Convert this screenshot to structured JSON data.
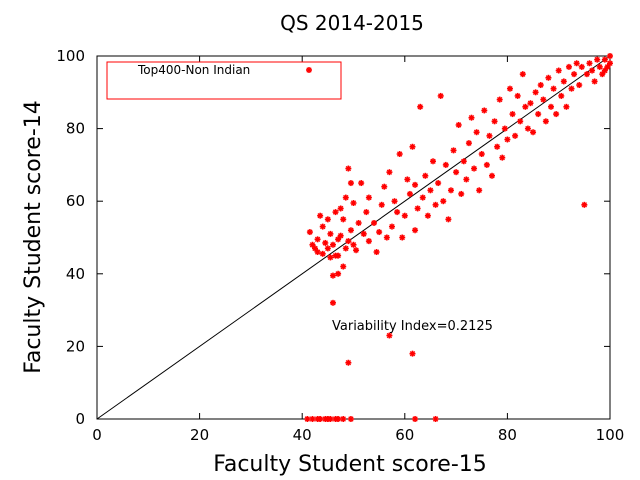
{
  "chart_data": {
    "type": "scatter",
    "title": "QS 2014-2015",
    "xlabel": "Faculty Student score-15",
    "ylabel": "Faculty Student score-14",
    "xlim": [
      0,
      100
    ],
    "ylim": [
      0,
      100
    ],
    "xticks": [
      0,
      20,
      40,
      60,
      80,
      100
    ],
    "yticks": [
      0,
      20,
      40,
      60,
      80,
      100
    ],
    "grid": false,
    "legend_position": "top-left",
    "annotation": "Variability Index=0.2125",
    "reference_line": [
      [
        0,
        0
      ],
      [
        100,
        100
      ]
    ],
    "colors": {
      "points": "#ff0000",
      "line": "#000000",
      "legend_border": "#ff0000"
    },
    "series": [
      {
        "name": "Top400-Non Indian",
        "points": [
          [
            41.5,
            51.5
          ],
          [
            42,
            48
          ],
          [
            42.5,
            47
          ],
          [
            43,
            49.5
          ],
          [
            43,
            46
          ],
          [
            43.5,
            56
          ],
          [
            44,
            45.5
          ],
          [
            44,
            53
          ],
          [
            44.5,
            48.5
          ],
          [
            45,
            47
          ],
          [
            45,
            55
          ],
          [
            45.5,
            51
          ],
          [
            45.5,
            44.5
          ],
          [
            46,
            39.5
          ],
          [
            46,
            48
          ],
          [
            46.5,
            57
          ],
          [
            46.5,
            45
          ],
          [
            47,
            40
          ],
          [
            47,
            49.5
          ],
          [
            47.5,
            50.5
          ],
          [
            47.5,
            58
          ],
          [
            48,
            42
          ],
          [
            48,
            55
          ],
          [
            48.5,
            47
          ],
          [
            48.5,
            61
          ],
          [
            49,
            69
          ],
          [
            49,
            49
          ],
          [
            49.5,
            65
          ],
          [
            49.5,
            52
          ],
          [
            50,
            48
          ],
          [
            50,
            59.5
          ],
          [
            50.5,
            46.5
          ],
          [
            51,
            54
          ],
          [
            51.5,
            65
          ],
          [
            52,
            51
          ],
          [
            52.5,
            57
          ],
          [
            53,
            49
          ],
          [
            53,
            61
          ],
          [
            54,
            54
          ],
          [
            54.5,
            46
          ],
          [
            55,
            51.5
          ],
          [
            55.5,
            59
          ],
          [
            56,
            64
          ],
          [
            56.5,
            50
          ],
          [
            57,
            68
          ],
          [
            57.5,
            53
          ],
          [
            58,
            60
          ],
          [
            58.5,
            57
          ],
          [
            59,
            73
          ],
          [
            59.5,
            50
          ],
          [
            60,
            56
          ],
          [
            60.5,
            66
          ],
          [
            61,
            62
          ],
          [
            61.5,
            75
          ],
          [
            62,
            52
          ],
          [
            62,
            64.5
          ],
          [
            62.5,
            58
          ],
          [
            63,
            86
          ],
          [
            63.5,
            61
          ],
          [
            64,
            67
          ],
          [
            64.5,
            56
          ],
          [
            65,
            63
          ],
          [
            65.5,
            71
          ],
          [
            66,
            59
          ],
          [
            66.5,
            65
          ],
          [
            67,
            89
          ],
          [
            67.5,
            60
          ],
          [
            68,
            70
          ],
          [
            68.5,
            55
          ],
          [
            69,
            63
          ],
          [
            69.5,
            74
          ],
          [
            70,
            68
          ],
          [
            70.5,
            81
          ],
          [
            71,
            62
          ],
          [
            71.5,
            71
          ],
          [
            72,
            66
          ],
          [
            72.5,
            76
          ],
          [
            73,
            83
          ],
          [
            73.5,
            69
          ],
          [
            74,
            79
          ],
          [
            74.5,
            63
          ],
          [
            75,
            73
          ],
          [
            75.5,
            85
          ],
          [
            76,
            70
          ],
          [
            76.5,
            78
          ],
          [
            77,
            67
          ],
          [
            77.5,
            82
          ],
          [
            78,
            75
          ],
          [
            78.5,
            88
          ],
          [
            79,
            72
          ],
          [
            79.5,
            80
          ],
          [
            80,
            77
          ],
          [
            80.5,
            91
          ],
          [
            81,
            84
          ],
          [
            81.5,
            78
          ],
          [
            82,
            89
          ],
          [
            82.5,
            82
          ],
          [
            83,
            95
          ],
          [
            83.5,
            86
          ],
          [
            84,
            80
          ],
          [
            84.5,
            87
          ],
          [
            85,
            79
          ],
          [
            85.5,
            90
          ],
          [
            86,
            84
          ],
          [
            86.5,
            92
          ],
          [
            87,
            88
          ],
          [
            87.5,
            82
          ],
          [
            88,
            94
          ],
          [
            88.5,
            86
          ],
          [
            89,
            91
          ],
          [
            89.5,
            84
          ],
          [
            90,
            96
          ],
          [
            90.5,
            89
          ],
          [
            91,
            93
          ],
          [
            91.5,
            86
          ],
          [
            92,
            97
          ],
          [
            92.5,
            91
          ],
          [
            93,
            95
          ],
          [
            93.5,
            98
          ],
          [
            94,
            92
          ],
          [
            94.5,
            97
          ],
          [
            95,
            59
          ],
          [
            95.5,
            95
          ],
          [
            96,
            98
          ],
          [
            96.5,
            96
          ],
          [
            97,
            93
          ],
          [
            97.5,
            99
          ],
          [
            98,
            97
          ],
          [
            98.5,
            95
          ],
          [
            99,
            99
          ],
          [
            99.5,
            97
          ],
          [
            100,
            100
          ],
          [
            99,
            96
          ],
          [
            100,
            98
          ],
          [
            57,
            23
          ],
          [
            61.5,
            18
          ],
          [
            49,
            15.5
          ],
          [
            46,
            32
          ],
          [
            47,
            45
          ],
          [
            41,
            0
          ],
          [
            42,
            0
          ],
          [
            43,
            0
          ],
          [
            43.5,
            0
          ],
          [
            44.5,
            0
          ],
          [
            45,
            0
          ],
          [
            45.5,
            0
          ],
          [
            46.5,
            0
          ],
          [
            47,
            0
          ],
          [
            48,
            0
          ],
          [
            49.5,
            0
          ],
          [
            62,
            0
          ],
          [
            66,
            0
          ]
        ]
      }
    ]
  }
}
